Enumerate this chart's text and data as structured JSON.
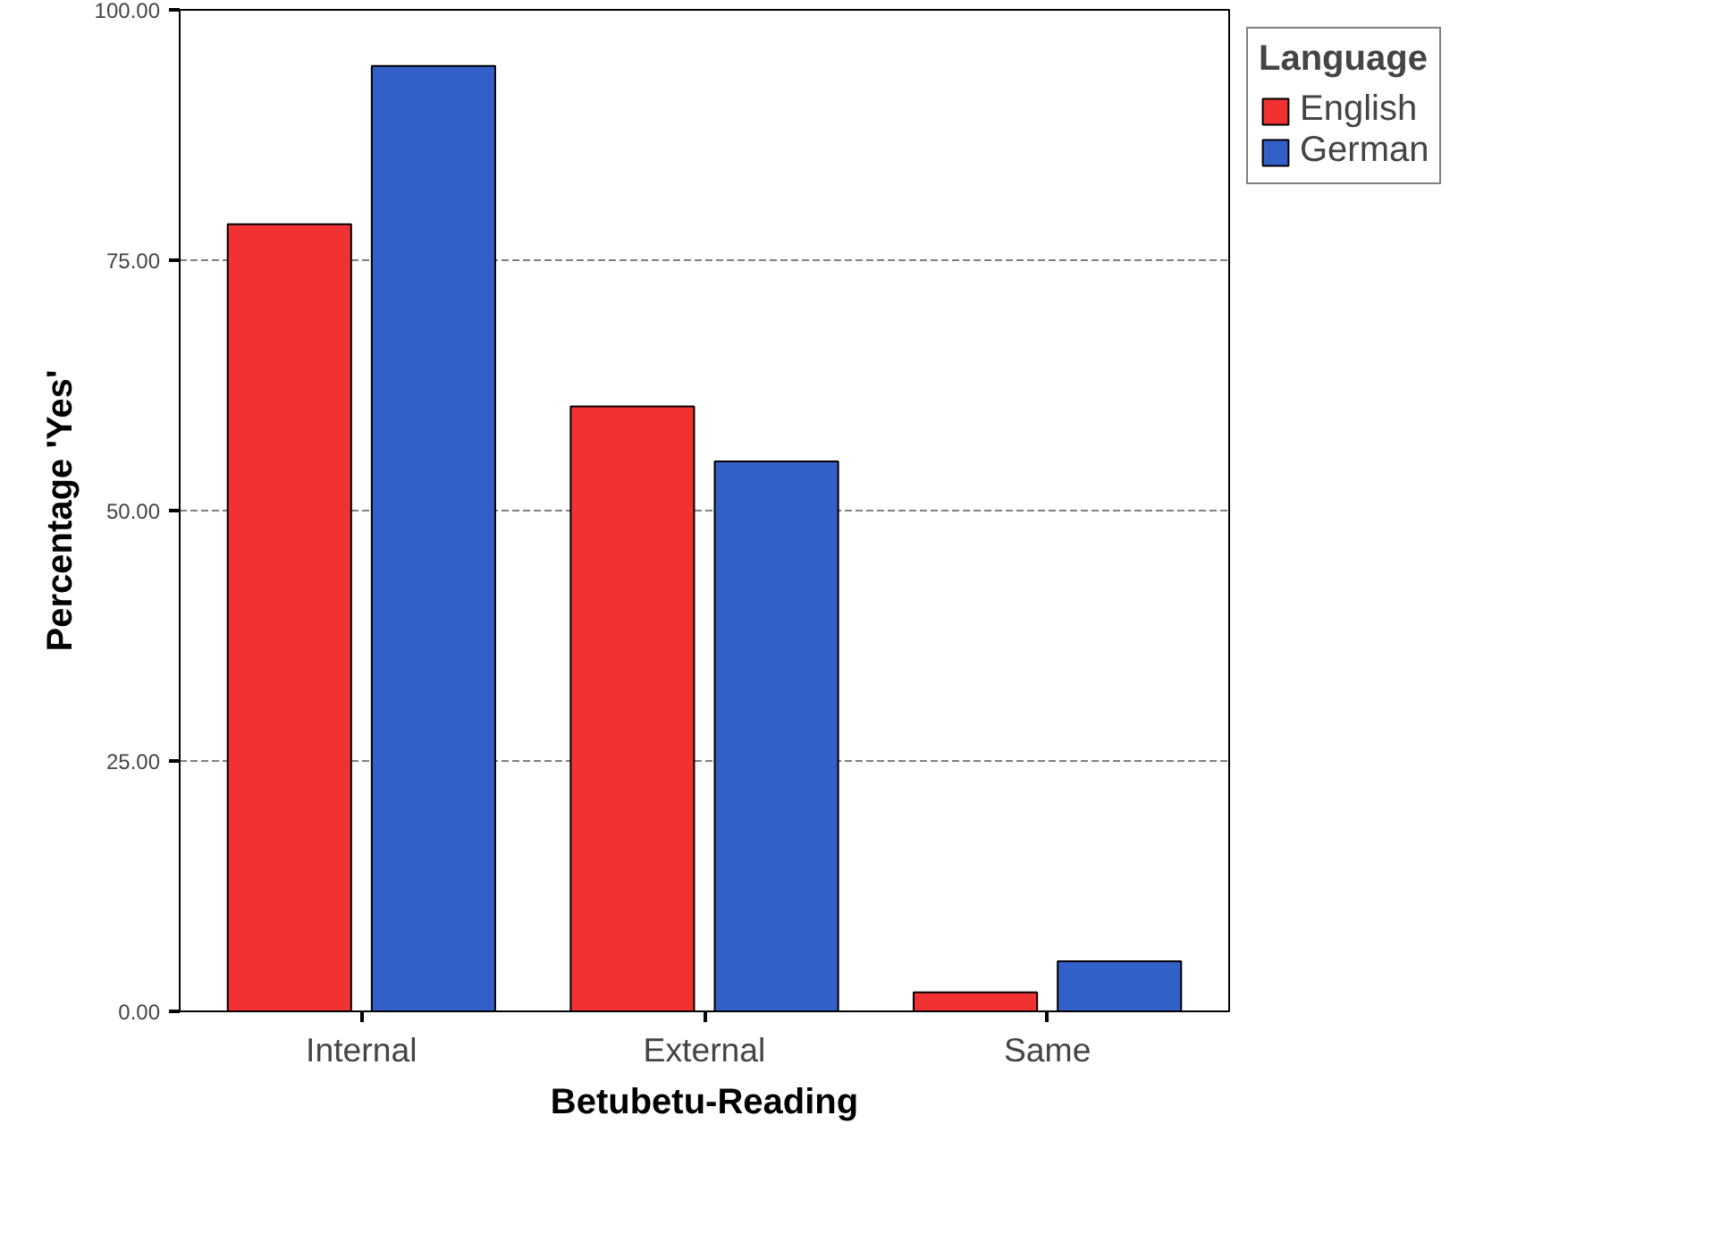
{
  "chart_data": {
    "type": "bar",
    "xlabel": "Betubetu-Reading",
    "ylabel": "Percentage 'Yes'",
    "legend_title": "Language",
    "categories": [
      "Internal",
      "External",
      "Same"
    ],
    "series": [
      {
        "name": "English",
        "color": "#f03232",
        "values": [
          78.6,
          60.4,
          1.9
        ]
      },
      {
        "name": "German",
        "color": "#3260c8",
        "values": [
          94.4,
          54.9,
          5.0
        ]
      }
    ],
    "ylim": [
      0,
      100
    ],
    "yticks": [
      {
        "value": 0,
        "label": "0.00"
      },
      {
        "value": 25,
        "label": "25.00"
      },
      {
        "value": 50,
        "label": "50.00"
      },
      {
        "value": 75,
        "label": "75.00"
      },
      {
        "value": 100,
        "label": "100.00"
      }
    ],
    "grid": "y",
    "legend": "top right"
  }
}
